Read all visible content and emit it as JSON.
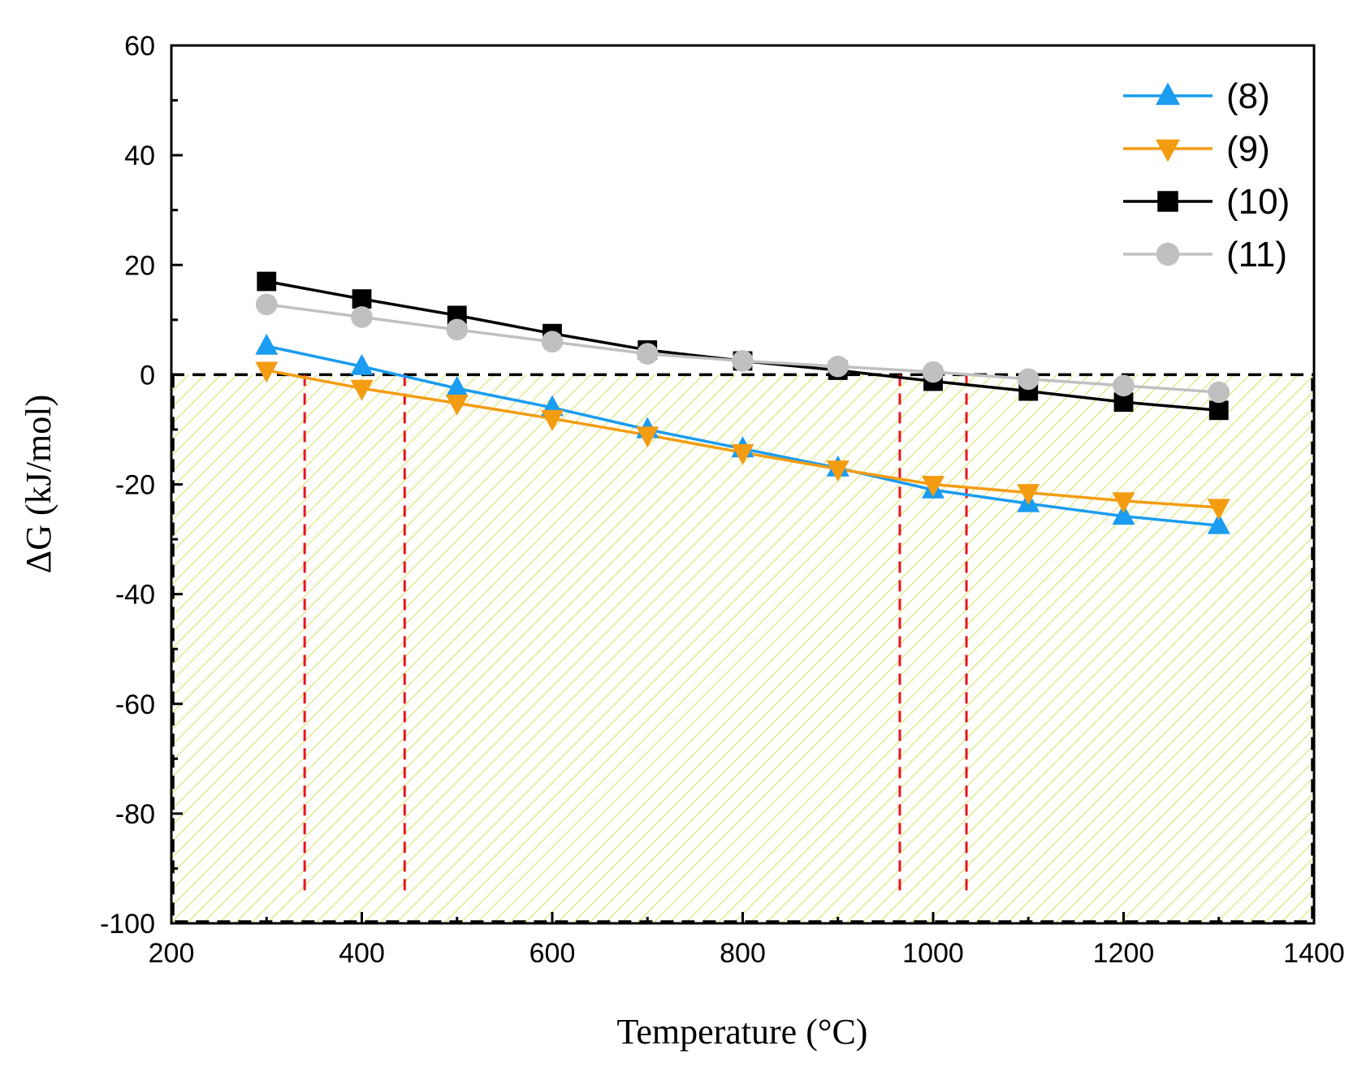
{
  "chart_data": {
    "type": "line",
    "title": "",
    "xlabel": "Temperature (°C)",
    "ylabel": "ΔG (kJ/mol)",
    "xlim": [
      200,
      1400
    ],
    "ylim": [
      -100,
      60
    ],
    "xticks": [
      200,
      400,
      600,
      800,
      1000,
      1200,
      1400
    ],
    "yticks": [
      60,
      40,
      20,
      0,
      -20,
      -40,
      -60,
      -80,
      -100
    ],
    "xtick_labels": [
      "200",
      "400",
      "600",
      "800",
      "1000",
      "1200",
      "1400"
    ],
    "ytick_labels": [
      "60",
      "40",
      "20",
      "0",
      "-20",
      "-40",
      "-60",
      "-80",
      "-100"
    ],
    "x": [
      300,
      400,
      500,
      600,
      700,
      800,
      900,
      1000,
      1100,
      1200,
      1300
    ],
    "series": [
      {
        "name": "(8)",
        "marker": "triangle-up",
        "color": "#1a9cf0",
        "values": [
          5.2,
          1.5,
          -2.5,
          -6.0,
          -10.0,
          -13.5,
          -17.0,
          -21.0,
          -23.5,
          -25.8,
          -27.5
        ]
      },
      {
        "name": "(9)",
        "marker": "triangle-down",
        "color": "#f39c12",
        "values": [
          0.8,
          -2.5,
          -5.2,
          -8.0,
          -11.0,
          -14.2,
          -17.2,
          -20.0,
          -21.5,
          -23.0,
          -24.2
        ]
      },
      {
        "name": "(10)",
        "marker": "square",
        "color": "#000000",
        "values": [
          17.0,
          13.8,
          10.8,
          7.5,
          4.5,
          2.5,
          0.8,
          -1.2,
          -3.0,
          -5.0,
          -6.5
        ]
      },
      {
        "name": "(11)",
        "marker": "circle",
        "color": "#c0c0c0",
        "values": [
          12.8,
          10.5,
          8.2,
          6.0,
          3.8,
          2.5,
          1.5,
          0.5,
          -0.8,
          -2.0,
          -3.2
        ]
      }
    ],
    "reference_lines": {
      "horizontal_zero": 0,
      "vertical_x": [
        340,
        445,
        965,
        1035
      ]
    },
    "shaded_region": {
      "x_range": [
        200,
        1400
      ],
      "y_range": [
        -100,
        0
      ],
      "color": "#d8e36a"
    },
    "legend_position": "top-right",
    "grid": false
  }
}
